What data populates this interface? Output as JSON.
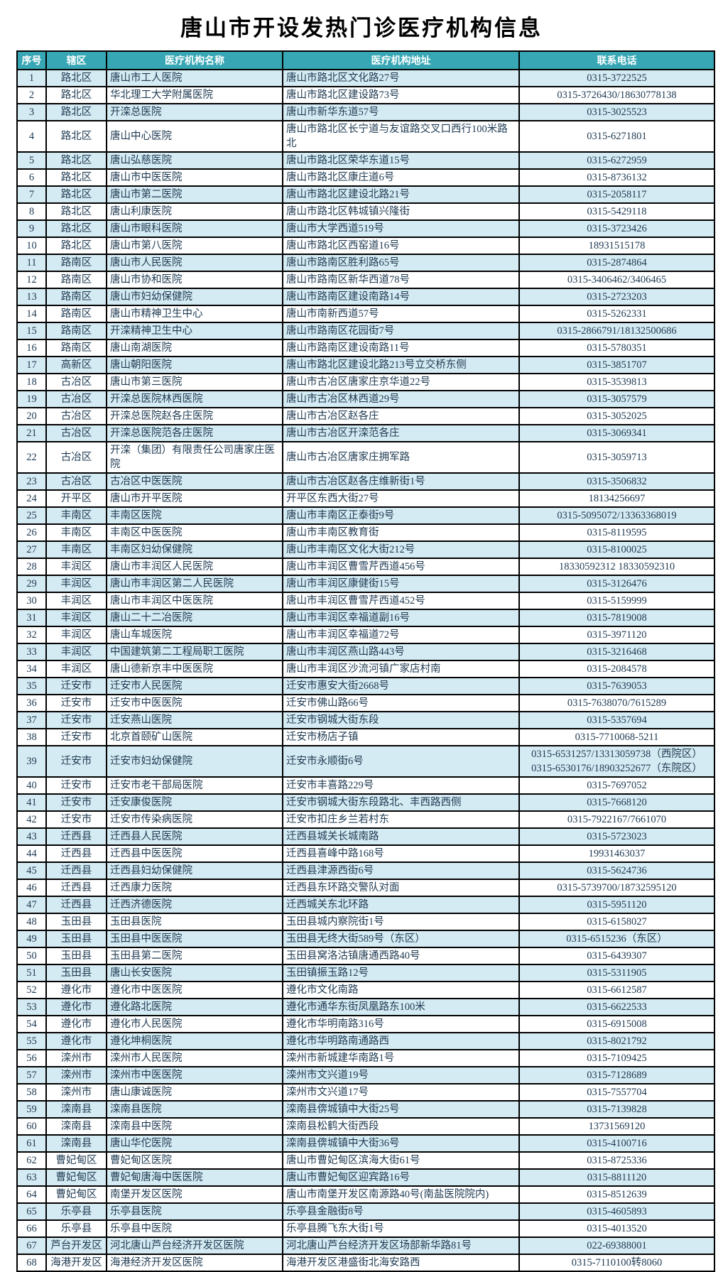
{
  "title": "唐山市开设发热门诊医疗机构信息",
  "colors": {
    "header_bg": "#38a7b5",
    "header_text": "#ffffff",
    "row_alt_bg": "#d5ebf3",
    "row_bg": "#ffffff",
    "text": "#1e3a52",
    "border": "#000000"
  },
  "table": {
    "columns": [
      "序号",
      "辖区",
      "医疗机构名称",
      "医疗机构地址",
      "联系电话"
    ],
    "rows": [
      [
        "1",
        "路北区",
        "唐山市工人医院",
        "唐山市路北区文化路27号",
        "0315-3722525"
      ],
      [
        "2",
        "路北区",
        "华北理工大学附属医院",
        "唐山市路北区建设路73号",
        "0315-3726430/18630778138"
      ],
      [
        "3",
        "路北区",
        "开滦总医院",
        "唐山市新华东道57号",
        "0315-3025523"
      ],
      [
        "4",
        "路北区",
        "唐山中心医院",
        "唐山市路北区长宁道与友谊路交叉口西行100米路北",
        "0315-6271801"
      ],
      [
        "5",
        "路北区",
        "唐山弘慈医院",
        "唐山市路北区荣华东道15号",
        "0315-6272959"
      ],
      [
        "6",
        "路北区",
        "唐山市中医医院",
        "唐山市路北区康庄道6号",
        "0315-8736132"
      ],
      [
        "7",
        "路北区",
        "唐山市第二医院",
        "唐山市路北区建设北路21号",
        "0315-2058117"
      ],
      [
        "8",
        "路北区",
        "唐山利康医院",
        "唐山市路北区韩城镇兴隆街",
        "0315-5429118"
      ],
      [
        "9",
        "路北区",
        "唐山市眼科医院",
        "唐山市大学西道519号",
        "0315-3723426"
      ],
      [
        "10",
        "路北区",
        "唐山市第八医院",
        "唐山市路北区西窑道16号",
        "18931515178"
      ],
      [
        "11",
        "路南区",
        "唐山市人民医院",
        "唐山市路南区胜利路65号",
        "0315-2874864"
      ],
      [
        "12",
        "路南区",
        "唐山市协和医院",
        "唐山市路南区新华西道78号",
        "0315-3406462/3406465"
      ],
      [
        "13",
        "路南区",
        "唐山市妇幼保健院",
        "唐山市路南区建设南路14号",
        "0315-2723203"
      ],
      [
        "14",
        "路南区",
        "唐山市精神卫生中心",
        "唐山市南新西道57号",
        "0315-5262331"
      ],
      [
        "15",
        "路南区",
        "开滦精神卫生中心",
        "唐山市路南区花园街7号",
        "0315-2866791/18132500686"
      ],
      [
        "16",
        "路南区",
        "唐山南湖医院",
        "唐山市路南区建设南路11号",
        "0315-5780351"
      ],
      [
        "17",
        "高新区",
        "唐山朝阳医院",
        "唐山市路北区建设北路213号立交桥东侧",
        "0315-3851707"
      ],
      [
        "18",
        "古冶区",
        "唐山市第三医院",
        "唐山市古冶区唐家庄京华道22号",
        "0315-3539813"
      ],
      [
        "19",
        "古冶区",
        "开滦总医院林西医院",
        "唐山市古冶区林西道29号",
        "0315-3057579"
      ],
      [
        "20",
        "古冶区",
        "开滦总医院赵各庄医院",
        "唐山市古冶区赵各庄",
        "0315-3052025"
      ],
      [
        "21",
        "古冶区",
        "开滦总医院范各庄医院",
        "唐山市古冶区开滦范各庄",
        "0315-3069341"
      ],
      [
        "22",
        "古冶区",
        "开滦（集团）有限责任公司唐家庄医院",
        "唐山市古冶区唐家庄拥军路",
        "0315-3059713"
      ],
      [
        "23",
        "古冶区",
        "古冶区中医医院",
        "唐山市古冶区赵各庄维新街1号",
        "0315-3506832"
      ],
      [
        "24",
        "开平区",
        "唐山市开平医院",
        "开平区东西大街27号",
        "18134256697"
      ],
      [
        "25",
        "丰南区",
        "丰南区医院",
        "唐山市丰南区正泰街9号",
        "0315-5095072/13363368019"
      ],
      [
        "26",
        "丰南区",
        "丰南区中医医院",
        "唐山市丰南区教育街",
        "0315-8119595"
      ],
      [
        "27",
        "丰南区",
        "丰南区妇幼保健院",
        "唐山市丰南区文化大街212号",
        "0315-8100025"
      ],
      [
        "28",
        "丰润区",
        "唐山市丰润区人民医院",
        "唐山市丰润区曹雪芹西道456号",
        "18330592312 18330592310"
      ],
      [
        "29",
        "丰润区",
        "唐山市丰润区第二人民医院",
        "唐山市丰润区康健街15号",
        "0315-3126476"
      ],
      [
        "30",
        "丰润区",
        "唐山市丰润区中医医院",
        "唐山市丰润区曹雪芹西道452号",
        "0315-5159999"
      ],
      [
        "31",
        "丰润区",
        "唐山二十二冶医院",
        "唐山市丰润区幸福道副16号",
        "0315-7819008"
      ],
      [
        "32",
        "丰润区",
        "唐山车城医院",
        "唐山市丰润区幸福道72号",
        "0315-3971120"
      ],
      [
        "33",
        "丰润区",
        "中国建筑第二工程局职工医院",
        "唐山市丰润区燕山路443号",
        "0315-3216468"
      ],
      [
        "34",
        "丰润区",
        "唐山德新京丰中医医院",
        "唐山市丰润区沙流河镇广家店村南",
        "0315-2084578"
      ],
      [
        "35",
        "迁安市",
        "迁安市人民医院",
        "迁安市惠安大街2668号",
        "0315-7639053"
      ],
      [
        "36",
        "迁安市",
        "迁安市中医医院",
        "迁安市佛山路66号",
        "0315-7638070/7615289"
      ],
      [
        "37",
        "迁安市",
        "迁安燕山医院",
        "迁安市钢城大街东段",
        "0315-5357694"
      ],
      [
        "38",
        "迁安市",
        "北京首颐矿山医院",
        "迁安市杨店子镇",
        "0315-7710068-5211"
      ],
      [
        "39",
        "迁安市",
        "迁安市妇幼保健院",
        "迁安市永顺街6号",
        "0315-6531257/13313059738（西院区）\n0315-6530176/18903252677（东院区）"
      ],
      [
        "40",
        "迁安市",
        "迁安市老干部局医院",
        "迁安市丰喜路229号",
        "0315-7697052"
      ],
      [
        "41",
        "迁安市",
        "迁安康俊医院",
        "迁安市钢城大街东段路北、丰西路西侧",
        "0315-7668120"
      ],
      [
        "42",
        "迁安市",
        "迁安市传染病医院",
        "迁安市扣庄乡兰若村东",
        "0315-7922167/7661070"
      ],
      [
        "43",
        "迁西县",
        "迁西县人民医院",
        "迁西县城关长城南路",
        "0315-5723023"
      ],
      [
        "44",
        "迁西县",
        "迁西县中医医院",
        "迁西县喜峰中路168号",
        "19931463037"
      ],
      [
        "45",
        "迁西县",
        "迁西县妇幼保健院",
        "迁西县津源西街6号",
        "0315-5624736"
      ],
      [
        "46",
        "迁西县",
        "迁西康力医院",
        "迁西县东环路交警队对面",
        "0315-5739700/18732595120"
      ],
      [
        "47",
        "迁西县",
        "迁西济德医院",
        "迁西城关东北环路",
        "0315-5951120"
      ],
      [
        "48",
        "玉田县",
        "玉田县医院",
        "玉田县城内察院街1号",
        "0315-6158027"
      ],
      [
        "49",
        "玉田县",
        "玉田县中医医院",
        "玉田县无终大街589号（东区）",
        "0315-6515236（东区）"
      ],
      [
        "50",
        "玉田县",
        "玉田县第二医院",
        "玉田县窝洛沽镇唐通西路40号",
        "0315-6439307"
      ],
      [
        "51",
        "玉田县",
        "唐山长安医院",
        "玉田镇振玉路12号",
        "0315-5311905"
      ],
      [
        "52",
        "遵化市",
        "遵化市中医医院",
        "遵化市文化南路",
        "0315-6612587"
      ],
      [
        "53",
        "遵化市",
        "遵化路北医院",
        "遵化市通华东街凤凰路东100米",
        "0315-6622533"
      ],
      [
        "54",
        "遵化市",
        "遵化市人民医院",
        "遵化市华明南路316号",
        "0315-6915008"
      ],
      [
        "55",
        "遵化市",
        "遵化坤桐医院",
        "遵化市华明路南通路西",
        "0315-8021792"
      ],
      [
        "56",
        "滦州市",
        "滦州市人民医院",
        "滦州市新城建华南路1号",
        "0315-7109425"
      ],
      [
        "57",
        "滦州市",
        "滦州市中医医院",
        "滦州市文兴道19号",
        "0315-7128689"
      ],
      [
        "58",
        "滦州市",
        "唐山康诚医院",
        "滦州市文兴道17号",
        "0315-7557704"
      ],
      [
        "59",
        "滦南县",
        "滦南县医院",
        "滦南县倴城镇中大街25号",
        "0315-7139828"
      ],
      [
        "60",
        "滦南县",
        "滦南县中医院",
        "滦南县松鹤大街西段",
        "13731569120"
      ],
      [
        "61",
        "滦南县",
        "唐山华佗医院",
        "滦南县倴城镇中大街36号",
        "0315-4100716"
      ],
      [
        "62",
        "曹妃甸区",
        "曹妃甸区医院",
        "唐山市曹妃甸区滨海大街61号",
        "0315-8725336"
      ],
      [
        "63",
        "曹妃甸区",
        "曹妃甸唐海中医医院",
        "唐山市曹妃甸区迎宾路16号",
        "0315-8811120"
      ],
      [
        "64",
        "曹妃甸区",
        "南堡开发区医院",
        "唐山市南堡开发区南源路40号(南盐医院院内)",
        "0315-8512639"
      ],
      [
        "65",
        "乐亭县",
        "乐亭县医院",
        "乐亭县金融街8号",
        "0315-4605893"
      ],
      [
        "66",
        "乐亭县",
        "乐亭县中医院",
        "乐亭县腾飞东大街1号",
        "0315-4013520"
      ],
      [
        "67",
        "芦台开发区",
        "河北唐山芦台经济开发区医院",
        "河北唐山芦台经济开发区场部新华路81号",
        "022-69388001"
      ],
      [
        "68",
        "海港开发区",
        "海港经济开发区医院",
        "海港开发区港盛街北海安路西",
        "0315-7110100转8060"
      ]
    ]
  }
}
